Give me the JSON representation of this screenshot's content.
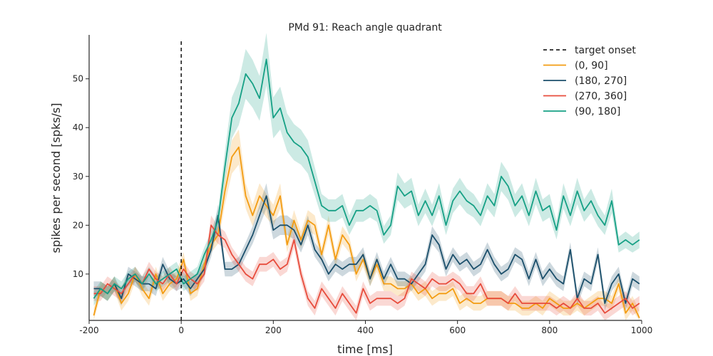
{
  "chart_data": {
    "type": "line",
    "title": "PMd 91: Reach angle quadrant",
    "xlabel": "time [ms]",
    "ylabel": "spikes per second [spks/s]",
    "xlim": [
      -200,
      1000
    ],
    "ylim": [
      0.5,
      59
    ],
    "xticks": [
      -200,
      0,
      200,
      400,
      600,
      800,
      1000
    ],
    "yticks": [
      10,
      20,
      30,
      40,
      50
    ],
    "grid": false,
    "legend": "top-right",
    "x": [
      -190,
      -175,
      -160,
      -145,
      -130,
      -115,
      -100,
      -85,
      -70,
      -55,
      -40,
      -25,
      -10,
      5,
      20,
      35,
      50,
      65,
      80,
      95,
      110,
      125,
      140,
      155,
      170,
      185,
      200,
      215,
      230,
      245,
      260,
      275,
      290,
      305,
      320,
      335,
      350,
      365,
      380,
      395,
      410,
      425,
      440,
      455,
      470,
      485,
      500,
      515,
      530,
      545,
      560,
      575,
      590,
      605,
      620,
      635,
      650,
      665,
      680,
      695,
      710,
      725,
      740,
      755,
      770,
      785,
      800,
      815,
      830,
      845,
      860,
      875,
      890,
      905,
      920,
      935,
      950,
      965,
      980,
      995
    ],
    "vlines": [
      {
        "x": 0,
        "label": "target onset",
        "color": "#000000",
        "style": "dashed"
      }
    ],
    "series": [
      {
        "name": "(0, 90]",
        "color": "#f39c12",
        "values": [
          1.5,
          7,
          6,
          8,
          4,
          6,
          10,
          7,
          5,
          10,
          6,
          8,
          9,
          13,
          6,
          7,
          12,
          16,
          18,
          27,
          34,
          36,
          26,
          22,
          26,
          24,
          22,
          26,
          16,
          21,
          17,
          21,
          20,
          14,
          20,
          13,
          18,
          16,
          10,
          13,
          9,
          12,
          8,
          8,
          7,
          7,
          8,
          6,
          7,
          5,
          6,
          6,
          7,
          4,
          5,
          4,
          4,
          5,
          5,
          5,
          4,
          4,
          3,
          3,
          4,
          3,
          5,
          4,
          3,
          3,
          4,
          3,
          4,
          5,
          5,
          4,
          8,
          2,
          4,
          1
        ]
      },
      {
        "name": "(180, 270]",
        "color": "#1b4f6b",
        "values": [
          7,
          7,
          6,
          8,
          5,
          10,
          9,
          8,
          8,
          7,
          12,
          9,
          8,
          9,
          7,
          9,
          11,
          15,
          22,
          11,
          11,
          12,
          15,
          18,
          22,
          26,
          19,
          20,
          20,
          19,
          16,
          20,
          15,
          13,
          10,
          12,
          11,
          12,
          12,
          14,
          9,
          13,
          9,
          12,
          9,
          9,
          8,
          10,
          12,
          18,
          16,
          11,
          14,
          12,
          13,
          11,
          12,
          15,
          12,
          10,
          11,
          14,
          13,
          9,
          13,
          9,
          11,
          9,
          8,
          15,
          5,
          9,
          8,
          14,
          4,
          8,
          10,
          4,
          9,
          8
        ]
      },
      {
        "name": "(270, 360]",
        "color": "#e74c3c",
        "values": [
          6,
          6,
          8,
          7,
          6,
          8,
          10,
          8,
          11,
          9,
          8,
          10,
          8,
          11,
          9,
          8,
          10,
          20,
          18,
          17,
          14,
          12,
          10,
          9,
          12,
          12,
          13,
          11,
          12,
          17,
          10,
          5,
          3,
          7,
          5,
          3,
          6,
          4,
          2,
          7,
          4,
          5,
          5,
          5,
          4,
          5,
          9,
          8,
          7,
          9,
          8,
          8,
          9,
          8,
          6,
          6,
          8,
          5,
          5,
          5,
          4,
          6,
          4,
          4,
          4,
          4,
          4,
          3,
          4,
          3,
          5,
          3,
          3,
          4,
          2,
          3,
          4,
          5,
          3,
          4
        ]
      },
      {
        "name": "(90, 180]",
        "color": "#16a085",
        "values": [
          5,
          7,
          6,
          8,
          7,
          9,
          10,
          8,
          10,
          8,
          9,
          10,
          11,
          8,
          9,
          10,
          14,
          17,
          21,
          32,
          42,
          45,
          51,
          49,
          46,
          54,
          42,
          44,
          39,
          37,
          36,
          34,
          29,
          24,
          23,
          23,
          24,
          20,
          23,
          23,
          24,
          23,
          18,
          20,
          28,
          26,
          27,
          22,
          25,
          22,
          26,
          20,
          25,
          27,
          25,
          24,
          22,
          26,
          24,
          30,
          28,
          24,
          26,
          22,
          27,
          23,
          24,
          19,
          26,
          22,
          27,
          23,
          25,
          22,
          20,
          25,
          16,
          17,
          16,
          17
        ]
      }
    ]
  }
}
